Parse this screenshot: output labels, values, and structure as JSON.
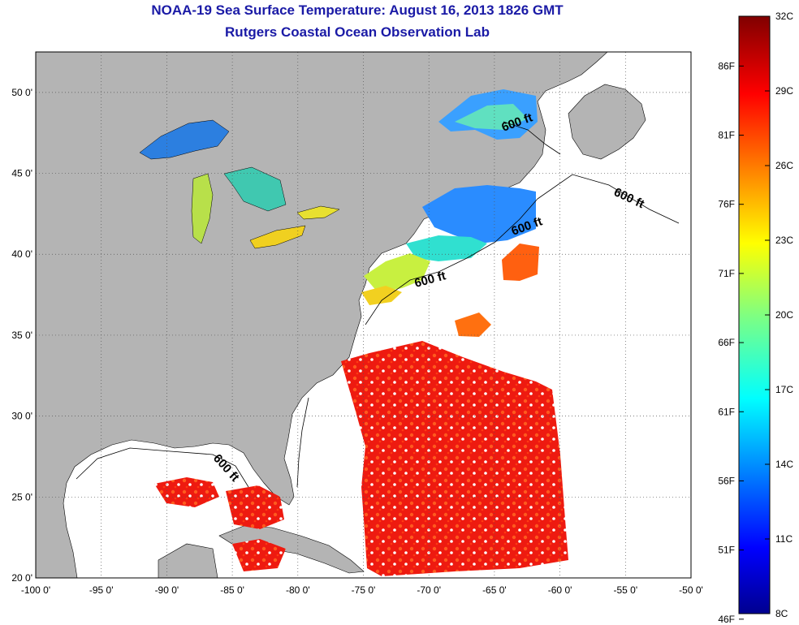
{
  "header": {
    "title": "NOAA-19 Sea Surface Temperature:  August 16, 2013 1826 GMT",
    "subtitle": "Rutgers Coastal Ocean Observation Lab"
  },
  "map": {
    "lon_range": [
      -100,
      -50
    ],
    "lat_range": [
      20,
      52.5
    ],
    "lon_ticks": [
      "-100 0'",
      "-95 0'",
      "-90 0'",
      "-85 0'",
      "-80 0'",
      "-75 0'",
      "-70 0'",
      "-65 0'",
      "-60 0'",
      "-55 0'",
      "-50 0'"
    ],
    "lat_ticks": [
      "20 0'",
      "25 0'",
      "30 0'",
      "35 0'",
      "40 0'",
      "45 0'",
      "50 0'"
    ],
    "grid": "dotted",
    "land_color": "#b4b4b4",
    "no_data_color": "#ffffff",
    "isobath_labels": [
      "600 ft",
      "600 ft",
      "600 ft",
      "600 ft",
      "600 ft"
    ]
  },
  "colorbar": {
    "range_c": [
      8,
      32
    ],
    "range_f": [
      46,
      89.6
    ],
    "celsius_ticks": [
      "32C",
      "29C",
      "26C",
      "23C",
      "20C",
      "17C",
      "14C",
      "11C",
      "8C"
    ],
    "fahrenheit_ticks": [
      "86F",
      "81F",
      "76F",
      "71F",
      "66F",
      "61F",
      "56F",
      "51F",
      "46F"
    ],
    "colormap": "jet"
  }
}
